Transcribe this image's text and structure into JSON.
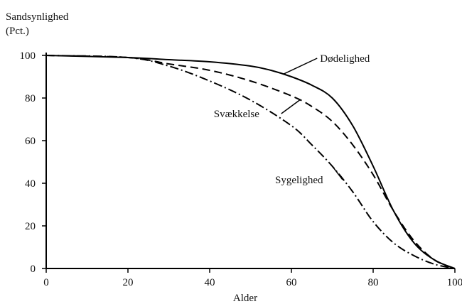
{
  "chart_data": {
    "type": "line",
    "ylabel_line1": "Sandsynlighed",
    "ylabel_line2": "(Pct.)",
    "xlabel": "Alder",
    "xlim": [
      0,
      100
    ],
    "ylim": [
      0,
      100
    ],
    "xticks": [
      0,
      20,
      40,
      60,
      80,
      100
    ],
    "yticks": [
      0,
      20,
      40,
      60,
      80,
      100
    ],
    "x_tick_labels": [
      "0",
      "20",
      "40",
      "60",
      "80",
      "100"
    ],
    "y_tick_labels": [
      "0",
      "20",
      "40",
      "60",
      "80",
      "100"
    ],
    "grid": false,
    "legend": "none",
    "series": [
      {
        "name": "Dødelighed",
        "style": "solid",
        "color": "#000000",
        "x": [
          0,
          20,
          30,
          40,
          50,
          55,
          60,
          65,
          70,
          75,
          80,
          85,
          90,
          95,
          100
        ],
        "y": [
          100,
          99,
          98,
          97,
          95,
          93,
          90,
          86,
          80,
          67,
          48,
          27,
          12,
          4,
          0
        ]
      },
      {
        "name": "Svækkelse",
        "style": "dashed",
        "color": "#000000",
        "x": [
          0,
          20,
          30,
          40,
          50,
          60,
          65,
          70,
          75,
          80,
          85,
          90,
          95,
          100
        ],
        "y": [
          100,
          99,
          96,
          93,
          88,
          81,
          76,
          69,
          58,
          44,
          27,
          13,
          4,
          0
        ]
      },
      {
        "name": "Sygelighed",
        "style": "dashdot",
        "color": "#000000",
        "x": [
          0,
          20,
          30,
          40,
          50,
          60,
          65,
          70,
          75,
          80,
          85,
          90,
          95,
          100
        ],
        "y": [
          100,
          99,
          95,
          88,
          79,
          67,
          58,
          48,
          36,
          22,
          12,
          6,
          2,
          0
        ]
      }
    ],
    "annotations": [
      {
        "text": "Dødelighed",
        "series": "Dødelighed",
        "at_x": 58,
        "text_x": 67,
        "text_y": 97
      },
      {
        "text": "Svækkelse",
        "series": "Svækkelse",
        "at_x": 62,
        "text_x": 41,
        "text_y": 71
      },
      {
        "text": "Sygelighed",
        "series": "Sygelighed",
        "at_x": 70,
        "text_x": 56,
        "text_y": 40
      }
    ]
  }
}
